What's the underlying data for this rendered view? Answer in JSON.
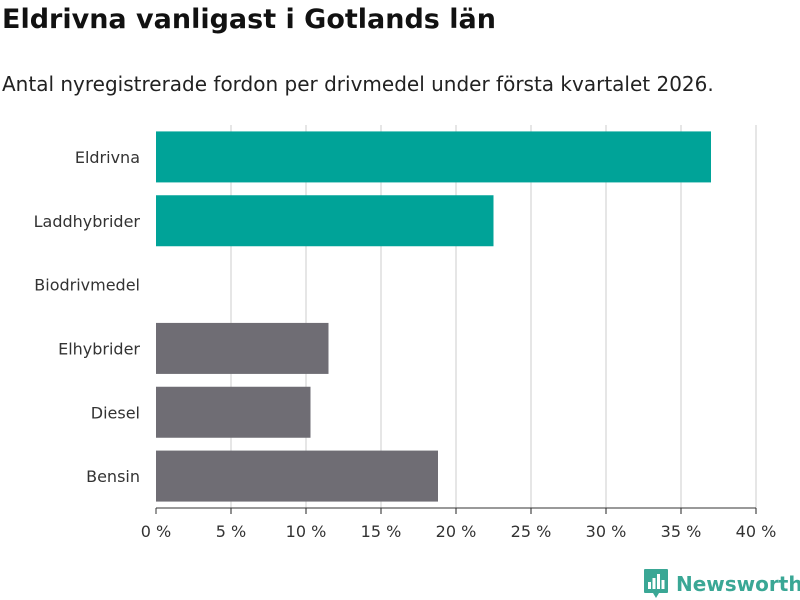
{
  "title": "Eldrivna vanligast i Gotlands län",
  "subtitle": "Antal nyregistrerade fordon per drivmedel under första kvartalet 2026.",
  "brand": {
    "name": "Newsworthy",
    "logo_icon": "bar-chart-logo-icon"
  },
  "colors": {
    "highlight": "#00a398",
    "default": "#6f6d74",
    "grid": "#dddddd",
    "axis": "#333333",
    "brand": "#3aa795"
  },
  "chart_data": {
    "type": "bar",
    "orientation": "horizontal",
    "categories": [
      "Eldrivna",
      "Laddhybrider",
      "Biodrivmedel",
      "Elhybrider",
      "Diesel",
      "Bensin"
    ],
    "values": [
      37.0,
      22.5,
      0.0,
      11.5,
      10.3,
      18.8
    ],
    "highlighted": [
      true,
      true,
      false,
      false,
      false,
      false
    ],
    "xlim": [
      0,
      40
    ],
    "xticks": [
      0,
      5,
      10,
      15,
      20,
      25,
      30,
      35,
      40
    ],
    "xtick_labels": [
      "0 %",
      "5 %",
      "10 %",
      "15 %",
      "20 %",
      "25 %",
      "30 %",
      "35 %",
      "40 %"
    ],
    "xlabel": "",
    "ylabel": "",
    "grid": true,
    "legend": "none"
  }
}
